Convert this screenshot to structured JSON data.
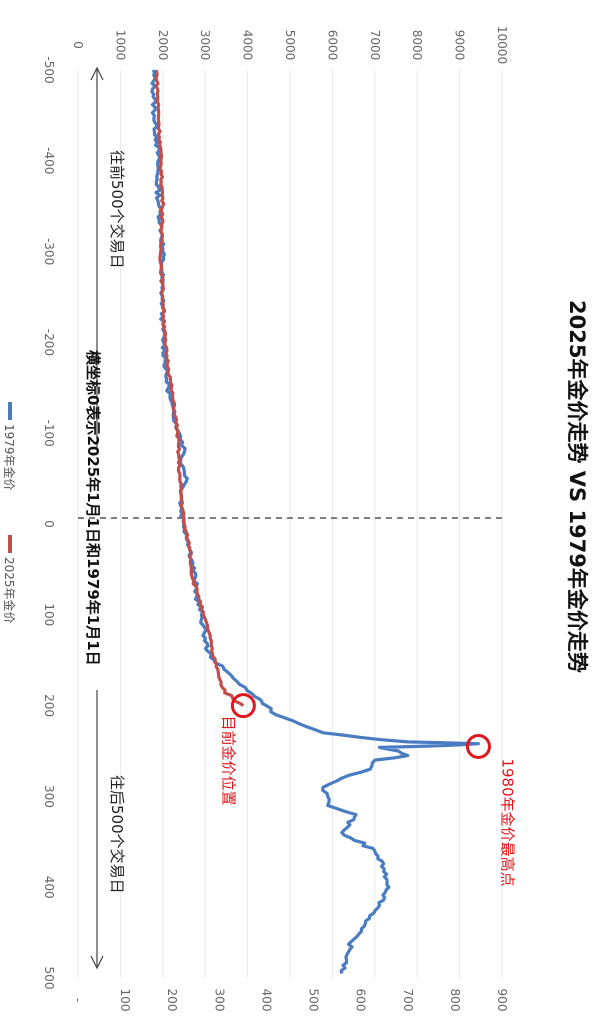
{
  "chart_data": {
    "type": "line",
    "title": "2025年金价走势 VS 1979年金价走势",
    "x_axis": {
      "label_note": "横坐标0表示2025年1月1日和1979年1月1日",
      "range": [
        -500,
        500
      ],
      "ticks": [
        "-500",
        "-400",
        "-300",
        "-200",
        "-100",
        "0",
        "100",
        "200",
        "300",
        "400",
        "500"
      ]
    },
    "y_axis_left": {
      "range": [
        0,
        10000
      ],
      "ticks": [
        "0",
        "1000",
        "2000",
        "3000",
        "4000",
        "5000",
        "6000",
        "7000",
        "8000",
        "9000",
        "10000"
      ]
    },
    "y_axis_right": {
      "range": [
        0,
        900
      ],
      "ticks": [
        "-",
        "100",
        "200",
        "300",
        "400",
        "500",
        "600",
        "700",
        "800",
        "900"
      ]
    },
    "legend": {
      "placement": "left",
      "items": [
        {
          "label": "1979年金价",
          "color": "#4a7cc2"
        },
        {
          "label": "2025年金价",
          "color": "#c0504d"
        }
      ]
    },
    "series": [
      {
        "name": "1979年金价",
        "axis": "right",
        "color": "#4a7cc2",
        "x": [
          -500,
          -450,
          -420,
          -400,
          -380,
          -350,
          -320,
          -300,
          -280,
          -260,
          -240,
          -220,
          -200,
          -180,
          -160,
          -150,
          -140,
          -120,
          -110,
          -100,
          -90,
          -80,
          -70,
          -60,
          -50,
          -40,
          -20,
          0,
          20,
          40,
          60,
          80,
          100,
          120,
          140,
          150,
          160,
          170,
          180,
          190,
          195,
          200,
          210,
          220,
          230,
          235,
          240,
          242,
          244,
          246,
          250,
          255,
          260,
          270,
          280,
          290,
          300,
          310,
          320,
          340,
          360,
          380,
          400,
          420,
          440,
          460,
          480,
          495
        ],
        "values": [
          160,
          162,
          168,
          170,
          168,
          172,
          178,
          180,
          178,
          178,
          180,
          180,
          182,
          185,
          188,
          192,
          195,
          202,
          210,
          215,
          222,
          226,
          218,
          225,
          232,
          222,
          218,
          225,
          235,
          242,
          248,
          252,
          262,
          268,
          275,
          290,
          310,
          330,
          355,
          375,
          390,
          400,
          420,
          470,
          520,
          600,
          700,
          850,
          770,
          640,
          680,
          700,
          630,
          620,
          560,
          520,
          530,
          530,
          590,
          560,
          630,
          650,
          660,
          640,
          610,
          580,
          570,
          560
        ]
      },
      {
        "name": "2025年金价",
        "axis": "left",
        "color": "#c0504d",
        "x": [
          -500,
          -450,
          -400,
          -350,
          -300,
          -250,
          -200,
          -150,
          -100,
          -50,
          0,
          30,
          60,
          80,
          100,
          120,
          140,
          160,
          180,
          195,
          200
        ],
        "values": [
          1850,
          1900,
          1950,
          2000,
          1950,
          2000,
          2050,
          2200,
          2350,
          2400,
          2500,
          2650,
          2700,
          2850,
          2950,
          3100,
          3150,
          3300,
          3400,
          3700,
          3900
        ]
      }
    ],
    "annotations": [
      {
        "text": "往前500个交易日",
        "x_from": -500,
        "x_to": -20
      },
      {
        "text": "往后500个交易日",
        "x_from": 200,
        "x_to": 500
      },
      {
        "text": "1980年金价最高点",
        "x": 245,
        "y": 850,
        "axis": "right",
        "color": "#e0161c"
      },
      {
        "text": "目前金价位置",
        "x": 200,
        "y": 3900,
        "axis": "left",
        "color": "#e0161c"
      }
    ]
  }
}
